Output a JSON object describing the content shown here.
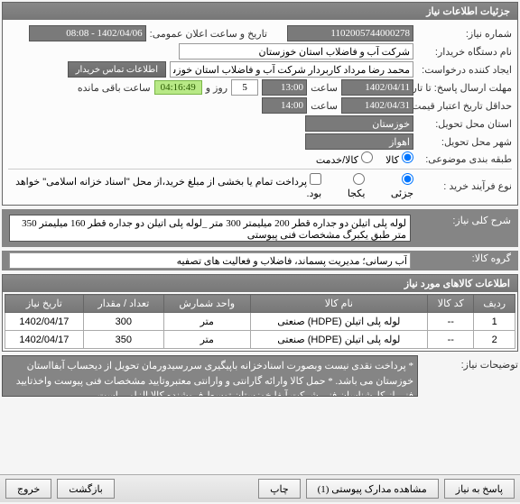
{
  "header": {
    "title": "جزئیات اطلاعات نیاز"
  },
  "fields": {
    "need_no_label": "شماره نیاز:",
    "need_no": "1102005744000278",
    "announce_label": "تاریخ و ساعت اعلان عمومی:",
    "announce_value": "1402/04/06 - 08:08",
    "buyer_label": "نام دستگاه خریدار:",
    "buyer_value": "شرکت آب و فاضلاب استان خوزستان",
    "creator_label": "ایجاد کننده درخواست:",
    "creator_value": "محمد رضا مرداد کاربردار شرکت آب و فاضلاب استان خوزستان",
    "contact_btn": "اطلاعات تماس خریدار",
    "deadline_label": "مهلت ارسال پاسخ: تا تاریخ:",
    "deadline_date": "1402/04/11",
    "time_label": "ساعت",
    "deadline_time": "13:00",
    "days_label": "روز و",
    "days_value": "5",
    "remain_label": "ساعت باقی مانده",
    "remain_value": "04:16:49",
    "validity_label": "حداقل تاریخ اعتبار قیمت: تا تاریخ:",
    "validity_date": "1402/04/31",
    "validity_time": "14:00",
    "province_label": "استان محل تحویل:",
    "province_value": "خوزستان",
    "city_label": "شهر محل تحویل:",
    "city_value": "اهواز",
    "subject_label": "طبقه بندی موضوعی:",
    "subject_opt_goods": "کالا",
    "subject_opt_service": "کالا/خدمت",
    "purchase_label": "نوع فرآیند خرید :",
    "purchase_opt_partial": "جزئی",
    "purchase_opt_full": "یکجا",
    "purchase_note": "پرداخت تمام یا بخشی از مبلغ خرید،از محل \"اسناد خزانه اسلامی\" خواهد بود."
  },
  "summary": {
    "title_label": "شرح کلی نیاز:",
    "title_value": "لوله پلی اتیلن دو جداره قطر 200 میلیمتر 300 متر _لوله پلی اتیلن دو جداره قطر 160 میلیمتر 350 متر طبق یکبرگ مشخصات فنی پیوستی",
    "group_label": "گروه کالا:",
    "group_value": "آب رسانی؛ مدیریت پسماند، فاضلاب و فعالیت های تصفیه"
  },
  "table": {
    "columns": [
      "ردیف",
      "کد کالا",
      "نام کالا",
      "واحد شمارش",
      "تعداد / مقدار",
      "تاریخ نیاز"
    ],
    "rows": [
      [
        "1",
        "--",
        "لوله پلی اتیلن (HDPE) صنعتی",
        "متر",
        "300",
        "1402/04/17"
      ],
      [
        "2",
        "--",
        "لوله پلی اتیلن (HDPE) صنعتی",
        "متر",
        "350",
        "1402/04/17"
      ]
    ]
  },
  "notes": {
    "label": "توضیحات نیاز:",
    "value": "* پرداخت نقدی نیست وبصورت اسنادخزانه باپیگیری سررسیدورمان تحویل از دیحساب آبفااستان خوزستان می باشد. * حمل کالا وارائه گارانتی و وارانتی معتبروتایید مشخصات فنی پیوست واخذتایید فنی از کارشناسان فنی شرکت آبفا خوزستان توسط فروشنده کالا الزامی است."
  },
  "section2": {
    "title": "اطلاعات کالاهای مورد نیاز"
  },
  "footer": {
    "respond": "پاسخ به نیاز",
    "attachments": "مشاهده مدارک پیوستی (1)",
    "print": "چاپ",
    "back": "بازگشت",
    "exit": "خروج"
  }
}
